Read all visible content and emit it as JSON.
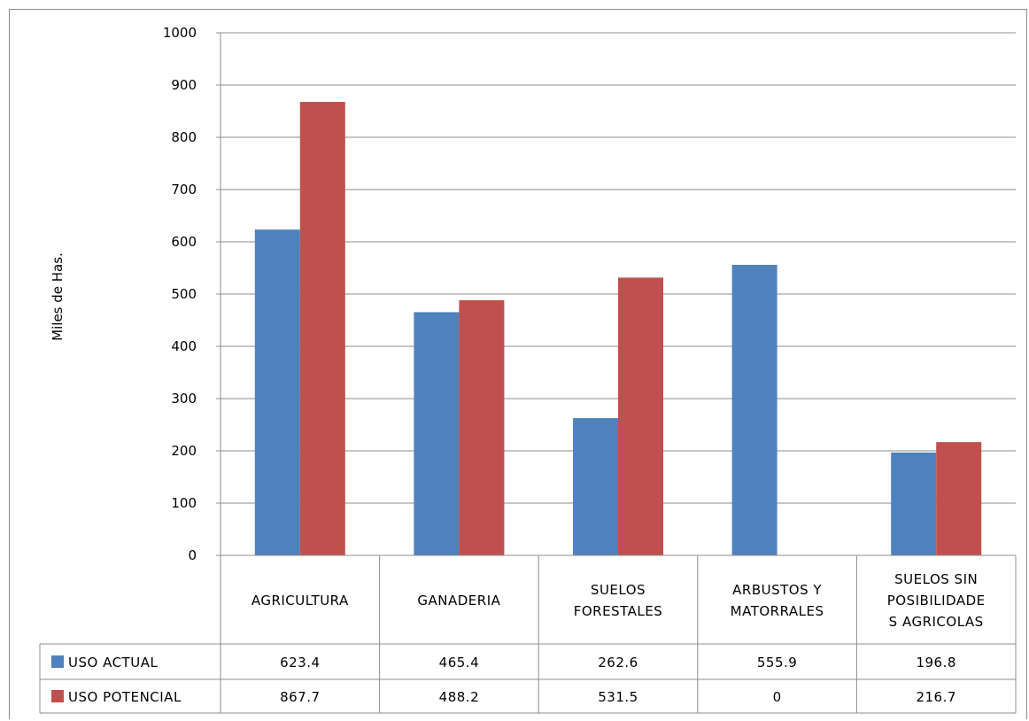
{
  "chart_data": {
    "type": "bar",
    "title": "",
    "ylabel": "Miles de Has.",
    "xlabel": "",
    "ylim": [
      0,
      1000
    ],
    "yticks": [
      0,
      100,
      200,
      300,
      400,
      500,
      600,
      700,
      800,
      900,
      1000
    ],
    "grid": true,
    "legend": "data-table-left",
    "categories": [
      [
        "AGRICULTURA"
      ],
      [
        "GANADERIA"
      ],
      [
        "SUELOS",
        "FORESTALES"
      ],
      [
        "ARBUSTOS Y",
        "MATORRALES"
      ],
      [
        "SUELOS SIN",
        "POSIBILIDADE",
        "S AGRICOLAS"
      ]
    ],
    "series": [
      {
        "name": "USO ACTUAL",
        "color": "#4f81bd",
        "values": [
          623.4,
          465.4,
          262.6,
          555.9,
          196.8
        ],
        "labels": [
          "623.4",
          "465.4",
          "262.6",
          "555.9",
          "196.8"
        ]
      },
      {
        "name": "USO POTENCIAL",
        "color": "#c0504d",
        "values": [
          867.7,
          488.2,
          531.5,
          0,
          216.7
        ],
        "labels": [
          "867.7",
          "488.2",
          "531.5",
          "0",
          "216.7"
        ]
      }
    ]
  }
}
